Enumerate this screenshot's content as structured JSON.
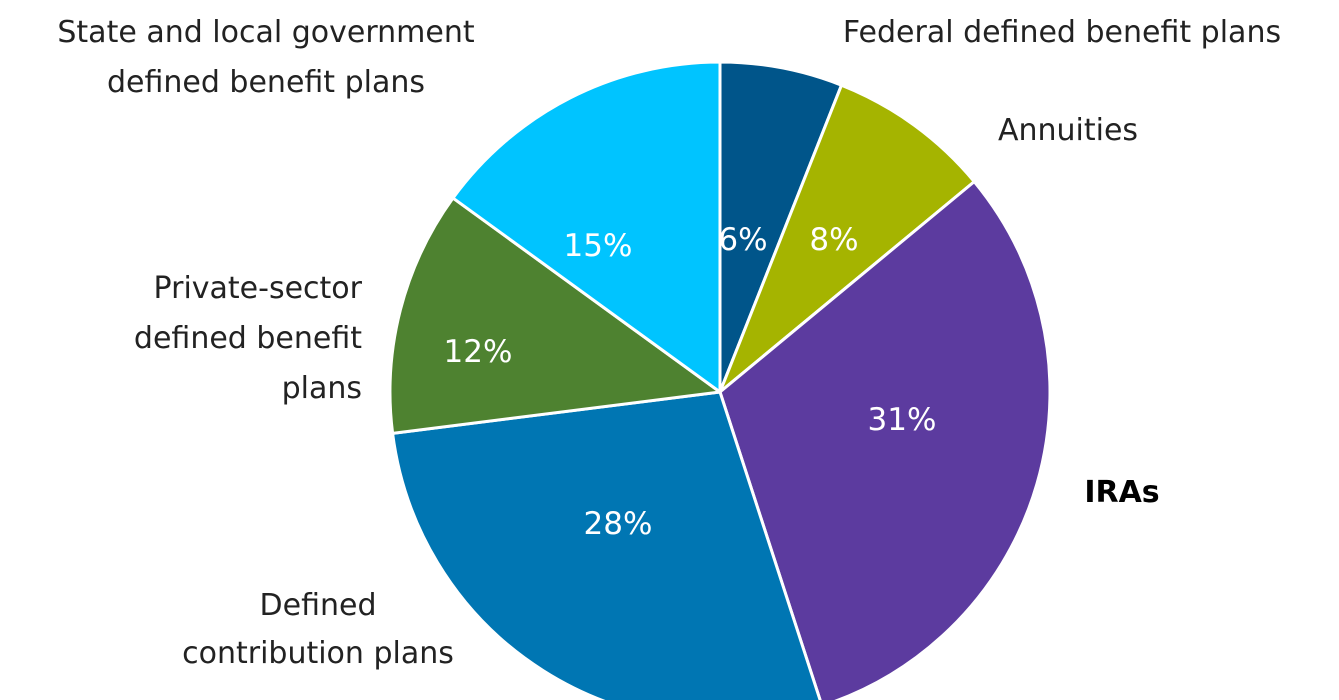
{
  "chart_data": {
    "type": "pie",
    "title": "",
    "slices": [
      {
        "label": [
          "Federal defined benefit plans"
        ],
        "value": 6,
        "value_label": "6%",
        "color": "#00558a",
        "bold": false
      },
      {
        "label": [
          "Annuities"
        ],
        "value": 8,
        "value_label": "8%",
        "color": "#a5b400",
        "bold": false
      },
      {
        "label": [
          "IRAs"
        ],
        "value": 31,
        "value_label": "31%",
        "color": "#5c3b9f",
        "bold": true
      },
      {
        "label": [
          "Defined",
          "contribution plans"
        ],
        "value": 28,
        "value_label": "28%",
        "color": "#0076b3",
        "bold": false
      },
      {
        "label": [
          "Private-sector",
          "defined benefit",
          "plans"
        ],
        "value": 12,
        "value_label": "12%",
        "color": "#4e8230",
        "bold": false
      },
      {
        "label": [
          "State and local government",
          "defined benefit plans"
        ],
        "value": 15,
        "value_label": "15%",
        "color": "#00c4ff",
        "bold": false
      }
    ],
    "start_angle": "12 o'clock",
    "direction": "clockwise",
    "legend": "none"
  }
}
